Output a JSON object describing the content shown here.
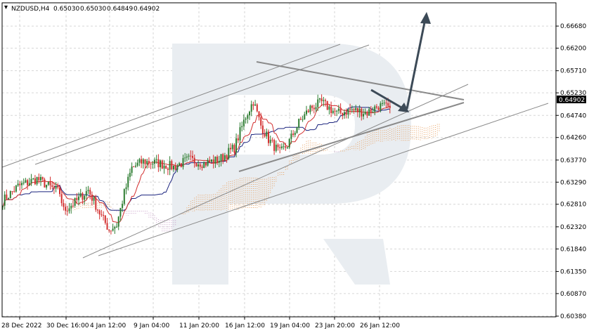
{
  "header": {
    "symbol": "NZDUSD,H4",
    "open": "0.65030",
    "high": "0.65030",
    "low": "0.64849",
    "close": "0.64902"
  },
  "chart_data": {
    "type": "candlestick",
    "symbol": "NZDUSD",
    "timeframe": "H4",
    "ylim": [
      0.6038,
      0.6688
    ],
    "x_tick_labels": [
      "28 Dec 2022",
      "30 Dec 16:00",
      "4 Jan 12:00",
      "9 Jan 04:00",
      "11 Jan 20:00",
      "16 Jan 12:00",
      "19 Jan 04:00",
      "23 Jan 20:00",
      "26 Jan 12:00"
    ],
    "y_tick_labels": [
      "0.66680",
      "0.66200",
      "0.65710",
      "0.65230",
      "0.64740",
      "0.64260",
      "0.63770",
      "0.63290",
      "0.62810",
      "0.62320",
      "0.61840",
      "0.61350",
      "0.60870",
      "0.60380"
    ],
    "current_price": "0.64902",
    "grid": true,
    "colors": {
      "bull": "#2e7d32",
      "bear": "#d32f2f",
      "tenkan": "#d32f2f",
      "kijun": "#1a237e",
      "cloud_a": "#e8a060",
      "cloud_b": "#c9a0c9",
      "trendline": "#8a8a8a",
      "arrow": "#3c4a57",
      "watermark": "#e9edf1"
    }
  }
}
